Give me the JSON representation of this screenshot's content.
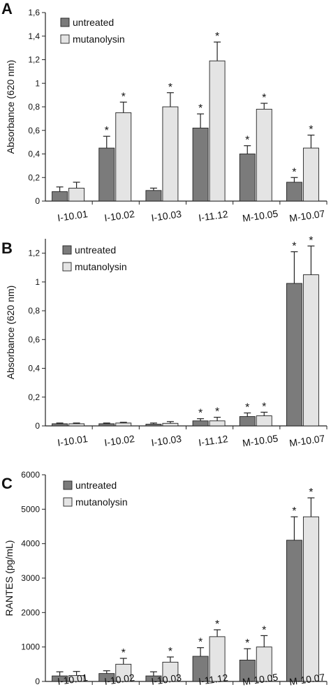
{
  "chart_data": [
    {
      "panel": "A",
      "type": "bar",
      "ylabel": "Absorbance (620 nm)",
      "ylim": [
        0,
        1.6
      ],
      "yticks": [
        "0",
        "0,2",
        "0,4",
        "0,6",
        "0,8",
        "1",
        "1,2",
        "1,4",
        "1,6"
      ],
      "legend_position": "top-left",
      "categories": [
        "I-10.01",
        "I-10.02",
        "I-10.03",
        "I-11.12",
        "M-10.05",
        "M-10.07"
      ],
      "series": [
        {
          "name": "untreated",
          "color": "#7b7b7b",
          "values": [
            0.08,
            0.45,
            0.09,
            0.62,
            0.4,
            0.16
          ],
          "errors": [
            0.04,
            0.1,
            0.02,
            0.12,
            0.07,
            0.04
          ],
          "significant": [
            false,
            true,
            false,
            true,
            true,
            true
          ]
        },
        {
          "name": "mutanolysin",
          "color": "#e4e4e4",
          "values": [
            0.11,
            0.75,
            0.8,
            1.19,
            0.78,
            0.45
          ],
          "errors": [
            0.05,
            0.09,
            0.12,
            0.16,
            0.05,
            0.11
          ],
          "significant": [
            false,
            true,
            true,
            true,
            true,
            true
          ]
        }
      ],
      "annotation": "*"
    },
    {
      "panel": "B",
      "type": "bar",
      "ylabel": "Absorbance (620 nm)",
      "ylim": [
        0,
        1.3
      ],
      "yticks": [
        "0",
        "0,2",
        "0,4",
        "0,6",
        "0,8",
        "1",
        "1,2"
      ],
      "legend_position": "top-left",
      "categories": [
        "I-10.01",
        "I-10.02",
        "I-10.03",
        "I-11.12",
        "M-10.05",
        "M-10.07"
      ],
      "series": [
        {
          "name": "untreated",
          "color": "#7b7b7b",
          "values": [
            0.015,
            0.015,
            0.012,
            0.035,
            0.065,
            0.99
          ],
          "errors": [
            0.005,
            0.005,
            0.008,
            0.015,
            0.025,
            0.22
          ],
          "significant": [
            false,
            false,
            false,
            true,
            true,
            true
          ]
        },
        {
          "name": "mutanolysin",
          "color": "#e4e4e4",
          "values": [
            0.015,
            0.02,
            0.018,
            0.035,
            0.07,
            1.05
          ],
          "errors": [
            0.005,
            0.005,
            0.012,
            0.025,
            0.025,
            0.2
          ],
          "significant": [
            false,
            false,
            false,
            true,
            true,
            true
          ]
        }
      ],
      "annotation": "*"
    },
    {
      "panel": "C",
      "type": "bar",
      "ylabel": "RANTES (pg/mL)",
      "ylim": [
        0,
        6000
      ],
      "yticks": [
        "0",
        "1000",
        "2000",
        "3000",
        "4000",
        "5000",
        "6000"
      ],
      "legend_position": "top-left",
      "categories": [
        "I-10.01",
        "I-10.02",
        "I-10.03",
        "I-11.12",
        "M-10.05",
        "M-10.07"
      ],
      "series": [
        {
          "name": "untreated",
          "color": "#7b7b7b",
          "values": [
            160,
            230,
            160,
            730,
            620,
            4100
          ],
          "errors": [
            120,
            80,
            120,
            250,
            330,
            680
          ],
          "significant": [
            false,
            false,
            false,
            true,
            true,
            true
          ]
        },
        {
          "name": "mutanolysin",
          "color": "#e4e4e4",
          "values": [
            170,
            500,
            560,
            1300,
            1000,
            4780
          ],
          "errors": [
            120,
            170,
            150,
            200,
            330,
            550
          ],
          "significant": [
            false,
            true,
            true,
            true,
            true,
            true
          ]
        }
      ],
      "annotation": "*"
    }
  ]
}
